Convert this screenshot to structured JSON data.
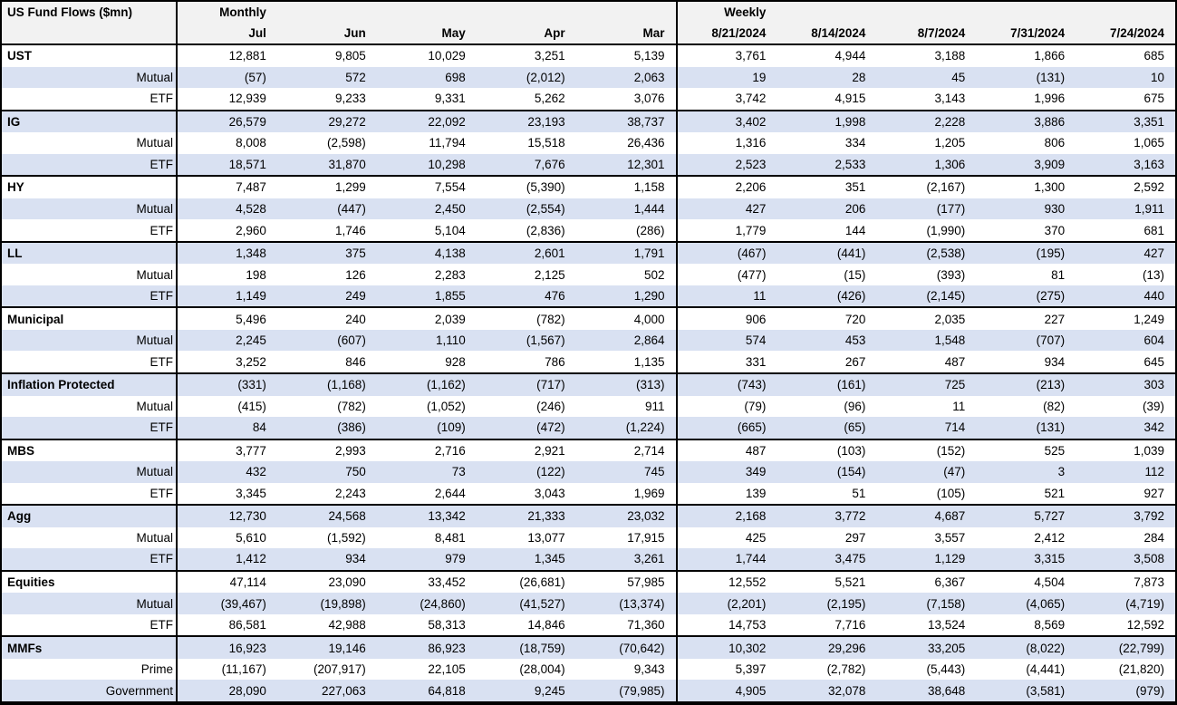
{
  "title": "US Fund Flows ($mn)",
  "colors": {
    "row_band": "#D9E1F2",
    "header_bg": "#F2F2F2",
    "border": "#000000",
    "text": "#000000",
    "background": "#FFFFFF"
  },
  "chart_data": {
    "type": "table",
    "title": "US Fund Flows ($mn)",
    "units": "$mn",
    "header": {
      "monthly_label": "Monthly",
      "weekly_label": "Weekly",
      "monthly_columns": [
        "Jul",
        "Jun",
        "May",
        "Apr",
        "Mar"
      ],
      "weekly_columns": [
        "8/21/2024",
        "8/14/2024",
        "8/7/2024",
        "7/31/2024",
        "7/24/2024"
      ]
    },
    "groups": [
      {
        "category": "UST",
        "rows": [
          {
            "label": "UST",
            "monthly": [
              "12,881",
              "9,805",
              "10,029",
              "3,251",
              "5,139"
            ],
            "weekly": [
              "3,761",
              "4,944",
              "3,188",
              "1,866",
              "685"
            ]
          },
          {
            "label": "Mutual",
            "monthly": [
              "(57)",
              "572",
              "698",
              "(2,012)",
              "2,063"
            ],
            "weekly": [
              "19",
              "28",
              "45",
              "(131)",
              "10"
            ]
          },
          {
            "label": "ETF",
            "monthly": [
              "12,939",
              "9,233",
              "9,331",
              "5,262",
              "3,076"
            ],
            "weekly": [
              "3,742",
              "4,915",
              "3,143",
              "1,996",
              "675"
            ]
          }
        ]
      },
      {
        "category": "IG",
        "rows": [
          {
            "label": "IG",
            "monthly": [
              "26,579",
              "29,272",
              "22,092",
              "23,193",
              "38,737"
            ],
            "weekly": [
              "3,402",
              "1,998",
              "2,228",
              "3,886",
              "3,351"
            ]
          },
          {
            "label": "Mutual",
            "monthly": [
              "8,008",
              "(2,598)",
              "11,794",
              "15,518",
              "26,436"
            ],
            "weekly": [
              "1,316",
              "334",
              "1,205",
              "806",
              "1,065"
            ]
          },
          {
            "label": "ETF",
            "monthly": [
              "18,571",
              "31,870",
              "10,298",
              "7,676",
              "12,301"
            ],
            "weekly": [
              "2,523",
              "2,533",
              "1,306",
              "3,909",
              "3,163"
            ]
          }
        ]
      },
      {
        "category": "HY",
        "rows": [
          {
            "label": "HY",
            "monthly": [
              "7,487",
              "1,299",
              "7,554",
              "(5,390)",
              "1,158"
            ],
            "weekly": [
              "2,206",
              "351",
              "(2,167)",
              "1,300",
              "2,592"
            ]
          },
          {
            "label": "Mutual",
            "monthly": [
              "4,528",
              "(447)",
              "2,450",
              "(2,554)",
              "1,444"
            ],
            "weekly": [
              "427",
              "206",
              "(177)",
              "930",
              "1,911"
            ]
          },
          {
            "label": "ETF",
            "monthly": [
              "2,960",
              "1,746",
              "5,104",
              "(2,836)",
              "(286)"
            ],
            "weekly": [
              "1,779",
              "144",
              "(1,990)",
              "370",
              "681"
            ]
          }
        ]
      },
      {
        "category": "LL",
        "rows": [
          {
            "label": "LL",
            "monthly": [
              "1,348",
              "375",
              "4,138",
              "2,601",
              "1,791"
            ],
            "weekly": [
              "(467)",
              "(441)",
              "(2,538)",
              "(195)",
              "427"
            ]
          },
          {
            "label": "Mutual",
            "monthly": [
              "198",
              "126",
              "2,283",
              "2,125",
              "502"
            ],
            "weekly": [
              "(477)",
              "(15)",
              "(393)",
              "81",
              "(13)"
            ]
          },
          {
            "label": "ETF",
            "monthly": [
              "1,149",
              "249",
              "1,855",
              "476",
              "1,290"
            ],
            "weekly": [
              "11",
              "(426)",
              "(2,145)",
              "(275)",
              "440"
            ]
          }
        ]
      },
      {
        "category": "Municipal",
        "rows": [
          {
            "label": "Municipal",
            "monthly": [
              "5,496",
              "240",
              "2,039",
              "(782)",
              "4,000"
            ],
            "weekly": [
              "906",
              "720",
              "2,035",
              "227",
              "1,249"
            ]
          },
          {
            "label": "Mutual",
            "monthly": [
              "2,245",
              "(607)",
              "1,110",
              "(1,567)",
              "2,864"
            ],
            "weekly": [
              "574",
              "453",
              "1,548",
              "(707)",
              "604"
            ]
          },
          {
            "label": "ETF",
            "monthly": [
              "3,252",
              "846",
              "928",
              "786",
              "1,135"
            ],
            "weekly": [
              "331",
              "267",
              "487",
              "934",
              "645"
            ]
          }
        ]
      },
      {
        "category": "Inflation Protected",
        "rows": [
          {
            "label": "Inflation Protected",
            "monthly": [
              "(331)",
              "(1,168)",
              "(1,162)",
              "(717)",
              "(313)"
            ],
            "weekly": [
              "(743)",
              "(161)",
              "725",
              "(213)",
              "303"
            ]
          },
          {
            "label": "Mutual",
            "monthly": [
              "(415)",
              "(782)",
              "(1,052)",
              "(246)",
              "911"
            ],
            "weekly": [
              "(79)",
              "(96)",
              "11",
              "(82)",
              "(39)"
            ]
          },
          {
            "label": "ETF",
            "monthly": [
              "84",
              "(386)",
              "(109)",
              "(472)",
              "(1,224)"
            ],
            "weekly": [
              "(665)",
              "(65)",
              "714",
              "(131)",
              "342"
            ]
          }
        ]
      },
      {
        "category": "MBS",
        "rows": [
          {
            "label": "MBS",
            "monthly": [
              "3,777",
              "2,993",
              "2,716",
              "2,921",
              "2,714"
            ],
            "weekly": [
              "487",
              "(103)",
              "(152)",
              "525",
              "1,039"
            ]
          },
          {
            "label": "Mutual",
            "monthly": [
              "432",
              "750",
              "73",
              "(122)",
              "745"
            ],
            "weekly": [
              "349",
              "(154)",
              "(47)",
              "3",
              "112"
            ]
          },
          {
            "label": "ETF",
            "monthly": [
              "3,345",
              "2,243",
              "2,644",
              "3,043",
              "1,969"
            ],
            "weekly": [
              "139",
              "51",
              "(105)",
              "521",
              "927"
            ]
          }
        ]
      },
      {
        "category": "Agg",
        "rows": [
          {
            "label": "Agg",
            "monthly": [
              "12,730",
              "24,568",
              "13,342",
              "21,333",
              "23,032"
            ],
            "weekly": [
              "2,168",
              "3,772",
              "4,687",
              "5,727",
              "3,792"
            ]
          },
          {
            "label": "Mutual",
            "monthly": [
              "5,610",
              "(1,592)",
              "8,481",
              "13,077",
              "17,915"
            ],
            "weekly": [
              "425",
              "297",
              "3,557",
              "2,412",
              "284"
            ]
          },
          {
            "label": "ETF",
            "monthly": [
              "1,412",
              "934",
              "979",
              "1,345",
              "3,261"
            ],
            "weekly": [
              "1,744",
              "3,475",
              "1,129",
              "3,315",
              "3,508"
            ]
          }
        ]
      },
      {
        "category": "Equities",
        "rows": [
          {
            "label": "Equities",
            "monthly": [
              "47,114",
              "23,090",
              "33,452",
              "(26,681)",
              "57,985"
            ],
            "weekly": [
              "12,552",
              "5,521",
              "6,367",
              "4,504",
              "7,873"
            ]
          },
          {
            "label": "Mutual",
            "monthly": [
              "(39,467)",
              "(19,898)",
              "(24,860)",
              "(41,527)",
              "(13,374)"
            ],
            "weekly": [
              "(2,201)",
              "(2,195)",
              "(7,158)",
              "(4,065)",
              "(4,719)"
            ]
          },
          {
            "label": "ETF",
            "monthly": [
              "86,581",
              "42,988",
              "58,313",
              "14,846",
              "71,360"
            ],
            "weekly": [
              "14,753",
              "7,716",
              "13,524",
              "8,569",
              "12,592"
            ]
          }
        ]
      },
      {
        "category": "MMFs",
        "rows": [
          {
            "label": "MMFs",
            "monthly": [
              "16,923",
              "19,146",
              "86,923",
              "(18,759)",
              "(70,642)"
            ],
            "weekly": [
              "10,302",
              "29,296",
              "33,205",
              "(8,022)",
              "(22,799)"
            ]
          },
          {
            "label": "Prime",
            "monthly": [
              "(11,167)",
              "(207,917)",
              "22,105",
              "(28,004)",
              "9,343"
            ],
            "weekly": [
              "5,397",
              "(2,782)",
              "(5,443)",
              "(4,441)",
              "(21,820)"
            ]
          },
          {
            "label": "Government",
            "monthly": [
              "28,090",
              "227,063",
              "64,818",
              "9,245",
              "(79,985)"
            ],
            "weekly": [
              "4,905",
              "32,078",
              "38,648",
              "(3,581)",
              "(979)"
            ]
          }
        ]
      }
    ]
  }
}
